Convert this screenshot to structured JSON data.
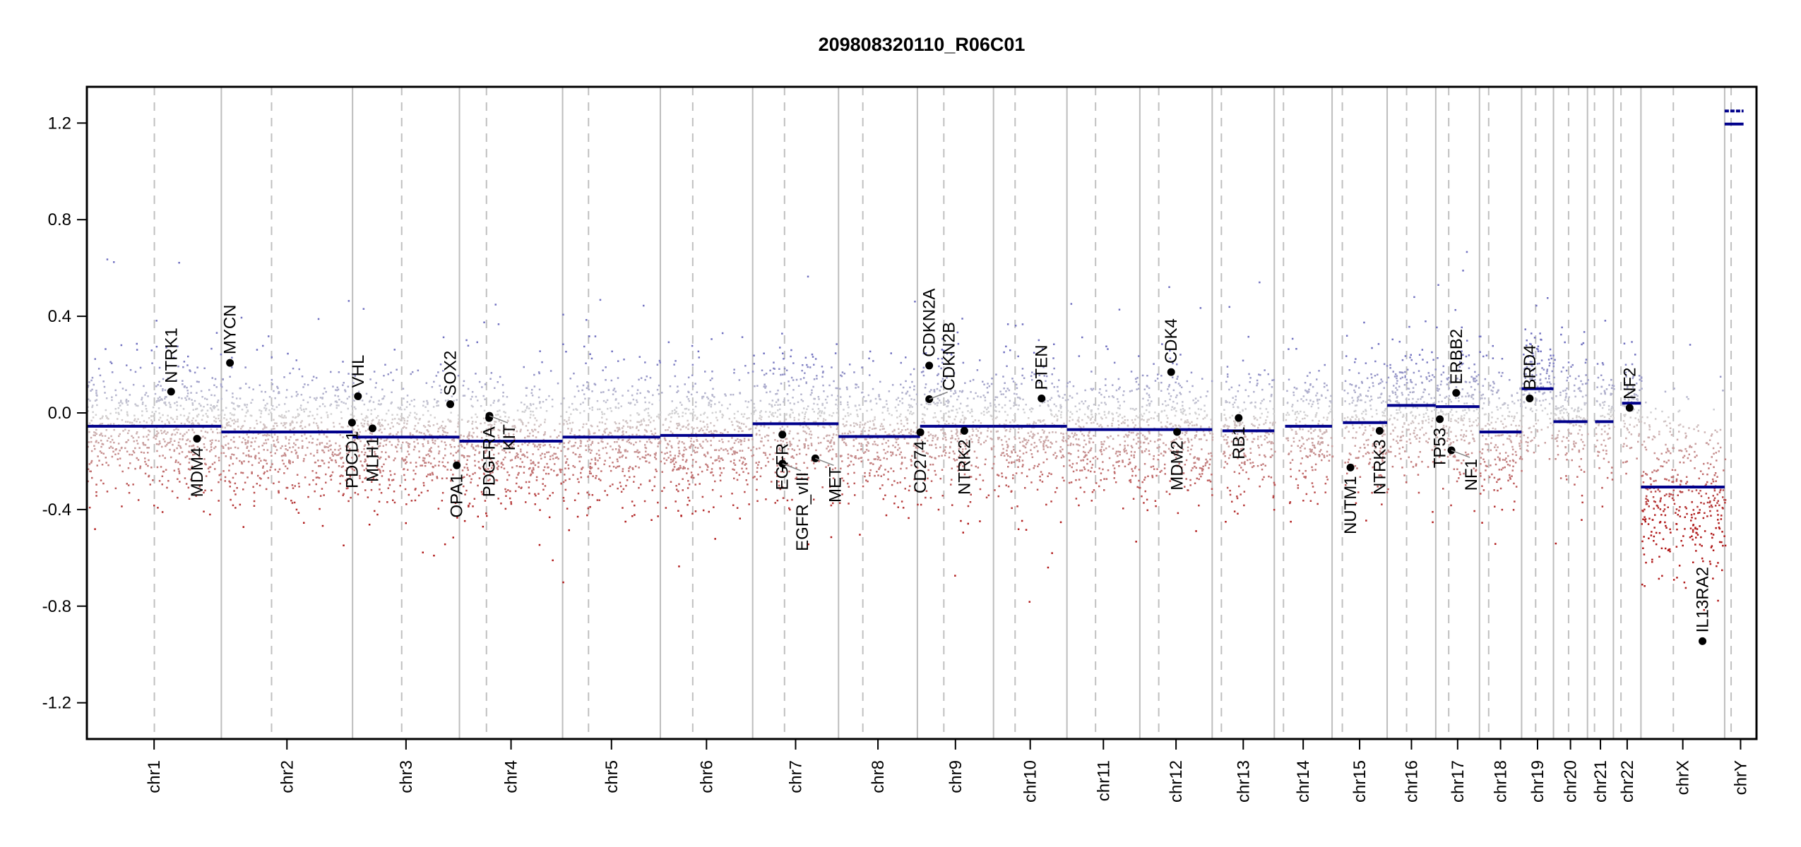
{
  "chart_data": {
    "type": "scatter",
    "title": "209808320110_R06C01",
    "xlabel": "",
    "ylabel": "",
    "ylim": [
      -1.35,
      1.35
    ],
    "yticks": [
      1.2,
      0.8,
      0.4,
      0.0,
      -0.4,
      -0.8,
      -1.2
    ],
    "ytick_labels": [
      "1.2",
      "0.8",
      "0.4",
      "0.0",
      "-0.4",
      "-0.8",
      "-1.2"
    ],
    "grid": false,
    "colors": {
      "segment": "#00008b",
      "high": "#7070c0",
      "neutral": "#d3d3d3",
      "low": "#b01818",
      "chrom_border": "#bdbdbd",
      "centromere": "#c0c0c0",
      "gene_point": "#000000"
    },
    "chromosomes": [
      {
        "name": "chr1",
        "length_mb": 249,
        "centromere_mb": 125,
        "segments": [
          [
            0,
            249,
            -0.055
          ]
        ]
      },
      {
        "name": "chr2",
        "length_mb": 243,
        "centromere_mb": 93,
        "segments": [
          [
            0,
            243,
            -0.079
          ]
        ]
      },
      {
        "name": "chr3",
        "length_mb": 198,
        "centromere_mb": 91,
        "segments": [
          [
            0,
            198,
            -0.1
          ]
        ]
      },
      {
        "name": "chr4",
        "length_mb": 191,
        "centromere_mb": 50,
        "segments": [
          [
            0,
            191,
            -0.117
          ]
        ]
      },
      {
        "name": "chr5",
        "length_mb": 181,
        "centromere_mb": 48,
        "segments": [
          [
            0,
            181,
            -0.1
          ]
        ]
      },
      {
        "name": "chr6",
        "length_mb": 171,
        "centromere_mb": 60,
        "segments": [
          [
            0,
            171,
            -0.093
          ]
        ]
      },
      {
        "name": "chr7",
        "length_mb": 159,
        "centromere_mb": 59,
        "segments": [
          [
            0,
            159,
            -0.045
          ]
        ]
      },
      {
        "name": "chr8",
        "length_mb": 146,
        "centromere_mb": 45,
        "segments": [
          [
            0,
            146,
            -0.098
          ]
        ]
      },
      {
        "name": "chr9",
        "length_mb": 141,
        "centromere_mb": 49,
        "segments": [
          [
            0,
            5,
            -0.098
          ],
          [
            5,
            141,
            -0.055
          ]
        ]
      },
      {
        "name": "chr10",
        "length_mb": 136,
        "centromere_mb": 40,
        "segments": [
          [
            0,
            136,
            -0.055
          ]
        ]
      },
      {
        "name": "chr11",
        "length_mb": 135,
        "centromere_mb": 53,
        "segments": [
          [
            0,
            135,
            -0.069
          ]
        ]
      },
      {
        "name": "chr12",
        "length_mb": 134,
        "centromere_mb": 35,
        "segments": [
          [
            0,
            134,
            -0.069
          ]
        ]
      },
      {
        "name": "chr13",
        "length_mb": 115,
        "centromere_mb": 17,
        "segments": [
          [
            19,
            115,
            -0.074
          ]
        ]
      },
      {
        "name": "chr14",
        "length_mb": 107,
        "centromere_mb": 17,
        "segments": [
          [
            20,
            107,
            -0.055
          ]
        ]
      },
      {
        "name": "chr15",
        "length_mb": 102,
        "centromere_mb": 19,
        "segments": [
          [
            20,
            102,
            -0.04
          ]
        ]
      },
      {
        "name": "chr16",
        "length_mb": 90,
        "centromere_mb": 36,
        "segments": [
          [
            0,
            90,
            0.031
          ]
        ]
      },
      {
        "name": "chr17",
        "length_mb": 81,
        "centromere_mb": 24,
        "segments": [
          [
            0,
            81,
            0.026
          ]
        ]
      },
      {
        "name": "chr18",
        "length_mb": 78,
        "centromere_mb": 17,
        "segments": [
          [
            0,
            78,
            -0.079
          ]
        ]
      },
      {
        "name": "chr19",
        "length_mb": 59,
        "centromere_mb": 26,
        "segments": [
          [
            0,
            59,
            0.1
          ]
        ]
      },
      {
        "name": "chr20",
        "length_mb": 63,
        "centromere_mb": 28,
        "segments": [
          [
            0,
            63,
            -0.036
          ]
        ]
      },
      {
        "name": "chr21",
        "length_mb": 48,
        "centromere_mb": 13,
        "segments": [
          [
            14,
            48,
            -0.036
          ]
        ]
      },
      {
        "name": "chr22",
        "length_mb": 51,
        "centromere_mb": 14,
        "segments": [
          [
            16,
            51,
            0.04
          ]
        ]
      },
      {
        "name": "chrX",
        "length_mb": 155,
        "centromere_mb": 60,
        "segments": [
          [
            0,
            155,
            -0.307
          ]
        ]
      },
      {
        "name": "chrY",
        "length_mb": 59,
        "centromere_mb": 12,
        "segments": [
          [
            0,
            35,
            1.25
          ],
          [
            0,
            35,
            1.196
          ]
        ]
      }
    ],
    "genes": [
      {
        "name": "NTRK1",
        "chr": "chr1",
        "pos_mb": 156,
        "value": 0.088,
        "label": "above"
      },
      {
        "name": "MDM4",
        "chr": "chr1",
        "pos_mb": 204,
        "value": -0.107,
        "label": "below"
      },
      {
        "name": "MYCN",
        "chr": "chr2",
        "pos_mb": 16,
        "value": 0.207,
        "label": "above"
      },
      {
        "name": "PDCD1",
        "chr": "chr2",
        "pos_mb": 242,
        "value": -0.04,
        "label": "below"
      },
      {
        "name": "VHL",
        "chr": "chr3",
        "pos_mb": 10,
        "value": 0.069,
        "label": "above"
      },
      {
        "name": "MLH1",
        "chr": "chr3",
        "pos_mb": 37,
        "value": -0.064,
        "label": "below"
      },
      {
        "name": "SOX2",
        "chr": "chr3",
        "pos_mb": 181,
        "value": 0.036,
        "label": "above"
      },
      {
        "name": "OPA1",
        "chr": "chr3",
        "pos_mb": 193,
        "value": -0.217,
        "label": "below"
      },
      {
        "name": "PDGFRA",
        "chr": "chr4",
        "pos_mb": 55,
        "value": -0.021,
        "label": "below"
      },
      {
        "name": "KIT",
        "chr": "chr4",
        "pos_mb": 55.5,
        "value": -0.012,
        "label": "below"
      },
      {
        "name": "EGFR",
        "chr": "chr7",
        "pos_mb": 55,
        "value": -0.09,
        "label": "below"
      },
      {
        "name": "EGFR_vIII",
        "chr": "chr7",
        "pos_mb": 55.2,
        "value": -0.21,
        "label": "below"
      },
      {
        "name": "MET",
        "chr": "chr7",
        "pos_mb": 116,
        "value": -0.188,
        "label": "below"
      },
      {
        "name": "CD274",
        "chr": "chr9",
        "pos_mb": 5.5,
        "value": -0.08,
        "label": "below"
      },
      {
        "name": "CDKN2A",
        "chr": "chr9",
        "pos_mb": 21.9,
        "value": 0.196,
        "label": "above"
      },
      {
        "name": "CDKN2B",
        "chr": "chr9",
        "pos_mb": 22.0,
        "value": 0.057,
        "label": "above"
      },
      {
        "name": "NTRK2",
        "chr": "chr9",
        "pos_mb": 87,
        "value": -0.074,
        "label": "below"
      },
      {
        "name": "PTEN",
        "chr": "chr10",
        "pos_mb": 89,
        "value": 0.06,
        "label": "above"
      },
      {
        "name": "CDK4",
        "chr": "chr12",
        "pos_mb": 58,
        "value": 0.169,
        "label": "above"
      },
      {
        "name": "MDM2",
        "chr": "chr12",
        "pos_mb": 69,
        "value": -0.079,
        "label": "below"
      },
      {
        "name": "RB1",
        "chr": "chr13",
        "pos_mb": 49,
        "value": -0.021,
        "label": "below"
      },
      {
        "name": "NUTM1",
        "chr": "chr15",
        "pos_mb": 34,
        "value": -0.226,
        "label": "below"
      },
      {
        "name": "NTRK3",
        "chr": "chr15",
        "pos_mb": 88,
        "value": -0.074,
        "label": "below"
      },
      {
        "name": "TP53",
        "chr": "chr17",
        "pos_mb": 7.5,
        "value": -0.026,
        "label": "below"
      },
      {
        "name": "NF1",
        "chr": "chr17",
        "pos_mb": 29,
        "value": -0.155,
        "label": "below"
      },
      {
        "name": "ERBB2",
        "chr": "chr17",
        "pos_mb": 37.8,
        "value": 0.083,
        "label": "above"
      },
      {
        "name": "BRD4",
        "chr": "chr19",
        "pos_mb": 15,
        "value": 0.06,
        "label": "above"
      },
      {
        "name": "NF2",
        "chr": "chr22",
        "pos_mb": 30,
        "value": 0.021,
        "label": "above"
      },
      {
        "name": "IL13RA2",
        "chr": "chrX",
        "pos_mb": 114,
        "value": -0.945,
        "label": "above"
      }
    ]
  }
}
